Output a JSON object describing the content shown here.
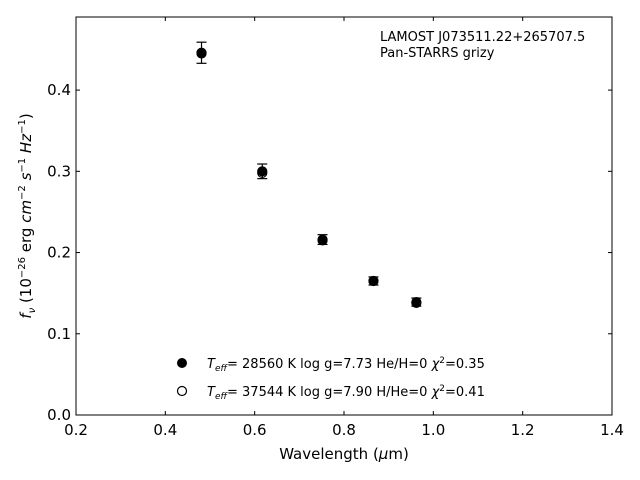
{
  "chart_data": {
    "type": "scatter",
    "annotation": [
      "LAMOST J073511.22+265707.5",
      "Pan-STARRS grizy"
    ],
    "xlabel": "Wavelength (μm)",
    "ylabel": "f_ν (10^−26 erg cm^−2 s^−1 Hz^−1)",
    "xlim": [
      0.2,
      1.4
    ],
    "ylim": [
      0.0,
      0.49
    ],
    "xticks": [
      "0.2",
      "0.4",
      "0.6",
      "0.8",
      "1.0",
      "1.2",
      "1.4"
    ],
    "yticks": [
      "0.0",
      "0.1",
      "0.2",
      "0.3",
      "0.4"
    ],
    "grid": false,
    "legend_position": "lower-center",
    "series": [
      {
        "name": "T_eff= 28560 K  log g=7.73  He/H=0  χ²=0.35",
        "marker": "filled-circle",
        "x": [
          0.481,
          0.617,
          0.752,
          0.866,
          0.962
        ],
        "y": [
          0.445,
          0.3,
          0.215,
          0.165,
          0.138
        ]
      },
      {
        "name": "T_eff= 37544 K  log g=7.90  H/He=0  χ²=0.41",
        "marker": "open-circle",
        "x": [
          0.481,
          0.617,
          0.752,
          0.866,
          0.962
        ],
        "y": [
          0.446,
          0.298,
          0.216,
          0.165,
          0.139
        ]
      }
    ],
    "observed": {
      "x": [
        0.481,
        0.617,
        0.752,
        0.866,
        0.962
      ],
      "y": [
        0.446,
        0.3,
        0.216,
        0.165,
        0.139
      ],
      "yerr": [
        0.013,
        0.009,
        0.006,
        0.005,
        0.005
      ]
    }
  }
}
